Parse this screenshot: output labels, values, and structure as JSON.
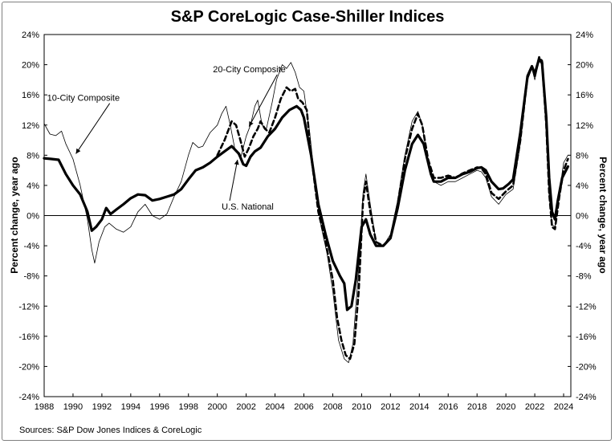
{
  "chart_data": {
    "type": "line",
    "title": "S&P CoreLogic Case-Shiller Indices",
    "source": "Sources:  S&P Dow Jones Indices & CoreLogic",
    "ylabel": "Percent change, year ago",
    "ylabel_right": "Percent change, year ago",
    "xlim": [
      1988,
      2024.5
    ],
    "ylim": [
      -24,
      24
    ],
    "x_ticks": [
      1988,
      1990,
      1992,
      1994,
      1996,
      1998,
      2000,
      2002,
      2004,
      2006,
      2008,
      2010,
      2012,
      2014,
      2016,
      2018,
      2020,
      2022,
      2024
    ],
    "x_tick_labels": [
      "1988",
      "1990",
      "1992",
      "1994",
      "1996",
      "1998",
      "2000",
      "2002",
      "2004",
      "2006",
      "2008",
      "2010",
      "2012",
      "2014",
      "2016",
      "2018",
      "2020",
      "2022",
      "2024"
    ],
    "y_ticks": [
      -24,
      -20,
      -16,
      -12,
      -8,
      -4,
      0,
      4,
      8,
      12,
      16,
      20,
      24
    ],
    "y_tick_labels": [
      "-24%",
      "-20%",
      "-16%",
      "-12%",
      "-8%",
      "-4%",
      "0%",
      "4%",
      "8%",
      "12%",
      "16%",
      "20%",
      "24%"
    ],
    "grid": false,
    "zero_line": true,
    "series": [
      {
        "name": "U.S. National",
        "style": "thick-solid",
        "color": "#000000",
        "points": [
          [
            1988.0,
            7.6
          ],
          [
            1988.5,
            7.5
          ],
          [
            1989.0,
            7.4
          ],
          [
            1989.5,
            5.5
          ],
          [
            1990.0,
            4.0
          ],
          [
            1990.5,
            2.8
          ],
          [
            1991.0,
            0.5
          ],
          [
            1991.3,
            -2.0
          ],
          [
            1991.6,
            -1.5
          ],
          [
            1992.0,
            -0.5
          ],
          [
            1992.3,
            1.0
          ],
          [
            1992.6,
            0.2
          ],
          [
            1993.0,
            0.8
          ],
          [
            1993.5,
            1.5
          ],
          [
            1994.0,
            2.3
          ],
          [
            1994.5,
            2.8
          ],
          [
            1995.0,
            2.7
          ],
          [
            1995.5,
            2.0
          ],
          [
            1996.0,
            2.2
          ],
          [
            1996.5,
            2.5
          ],
          [
            1997.0,
            2.8
          ],
          [
            1997.5,
            3.5
          ],
          [
            1998.0,
            4.8
          ],
          [
            1998.5,
            6.0
          ],
          [
            1999.0,
            6.4
          ],
          [
            1999.5,
            7.0
          ],
          [
            2000.0,
            7.8
          ],
          [
            2000.5,
            8.5
          ],
          [
            2001.0,
            9.2
          ],
          [
            2001.5,
            8.2
          ],
          [
            2001.8,
            6.8
          ],
          [
            2002.0,
            6.6
          ],
          [
            2002.3,
            7.8
          ],
          [
            2002.6,
            8.5
          ],
          [
            2003.0,
            9.0
          ],
          [
            2003.5,
            10.5
          ],
          [
            2004.0,
            11.5
          ],
          [
            2004.5,
            13.0
          ],
          [
            2005.0,
            14.0
          ],
          [
            2005.5,
            14.5
          ],
          [
            2005.8,
            14.0
          ],
          [
            2006.0,
            13.0
          ],
          [
            2006.5,
            8.0
          ],
          [
            2007.0,
            1.5
          ],
          [
            2007.5,
            -2.5
          ],
          [
            2008.0,
            -6.0
          ],
          [
            2008.5,
            -8.0
          ],
          [
            2008.8,
            -9.0
          ],
          [
            2009.0,
            -12.5
          ],
          [
            2009.3,
            -12.0
          ],
          [
            2009.6,
            -8.5
          ],
          [
            2010.0,
            -1.5
          ],
          [
            2010.3,
            -0.5
          ],
          [
            2010.6,
            -2.5
          ],
          [
            2011.0,
            -4.0
          ],
          [
            2011.5,
            -4.0
          ],
          [
            2012.0,
            -3.0
          ],
          [
            2012.5,
            1.0
          ],
          [
            2013.0,
            6.0
          ],
          [
            2013.5,
            9.5
          ],
          [
            2013.9,
            10.7
          ],
          [
            2014.3,
            9.5
          ],
          [
            2014.8,
            5.5
          ],
          [
            2015.0,
            4.5
          ],
          [
            2015.5,
            4.5
          ],
          [
            2016.0,
            5.0
          ],
          [
            2016.5,
            5.0
          ],
          [
            2017.0,
            5.5
          ],
          [
            2017.5,
            5.8
          ],
          [
            2018.0,
            6.3
          ],
          [
            2018.3,
            6.4
          ],
          [
            2018.6,
            6.0
          ],
          [
            2019.0,
            4.5
          ],
          [
            2019.5,
            3.5
          ],
          [
            2019.8,
            3.6
          ],
          [
            2020.2,
            4.2
          ],
          [
            2020.5,
            4.8
          ],
          [
            2021.0,
            11.0
          ],
          [
            2021.5,
            18.5
          ],
          [
            2021.8,
            19.8
          ],
          [
            2022.0,
            18.8
          ],
          [
            2022.3,
            20.8
          ],
          [
            2022.5,
            20.3
          ],
          [
            2022.8,
            13.0
          ],
          [
            2023.0,
            5.0
          ],
          [
            2023.2,
            0.5
          ],
          [
            2023.4,
            -0.5
          ],
          [
            2023.6,
            2.0
          ],
          [
            2023.9,
            5.0
          ],
          [
            2024.3,
            6.5
          ]
        ]
      },
      {
        "name": "20-City Composite",
        "style": "dashed",
        "color": "#000000",
        "points": [
          [
            2000.0,
            8.0
          ],
          [
            2000.5,
            10.0
          ],
          [
            2001.0,
            12.5
          ],
          [
            2001.3,
            12.0
          ],
          [
            2001.6,
            10.0
          ],
          [
            2001.9,
            7.8
          ],
          [
            2002.2,
            9.0
          ],
          [
            2002.5,
            10.5
          ],
          [
            2002.8,
            11.5
          ],
          [
            2003.0,
            12.5
          ],
          [
            2003.3,
            11.5
          ],
          [
            2003.6,
            11.0
          ],
          [
            2004.0,
            13.0
          ],
          [
            2004.4,
            15.5
          ],
          [
            2004.8,
            17.0
          ],
          [
            2005.1,
            16.5
          ],
          [
            2005.4,
            16.8
          ],
          [
            2005.6,
            15.5
          ],
          [
            2005.9,
            15.0
          ],
          [
            2006.2,
            14.0
          ],
          [
            2006.5,
            8.0
          ],
          [
            2007.0,
            0.5
          ],
          [
            2007.5,
            -3.5
          ],
          [
            2008.0,
            -8.5
          ],
          [
            2008.3,
            -13.5
          ],
          [
            2008.6,
            -16.5
          ],
          [
            2008.9,
            -18.5
          ],
          [
            2009.2,
            -19.0
          ],
          [
            2009.5,
            -17.0
          ],
          [
            2009.8,
            -10.0
          ],
          [
            2010.1,
            2.0
          ],
          [
            2010.3,
            4.5
          ],
          [
            2010.6,
            0.5
          ],
          [
            2011.0,
            -3.5
          ],
          [
            2011.5,
            -4.0
          ],
          [
            2012.0,
            -3.0
          ],
          [
            2012.5,
            1.5
          ],
          [
            2013.0,
            7.5
          ],
          [
            2013.5,
            11.5
          ],
          [
            2013.9,
            13.5
          ],
          [
            2014.2,
            12.0
          ],
          [
            2014.6,
            7.5
          ],
          [
            2015.0,
            5.0
          ],
          [
            2015.5,
            5.0
          ],
          [
            2016.0,
            5.3
          ],
          [
            2016.5,
            5.0
          ],
          [
            2017.0,
            5.6
          ],
          [
            2017.5,
            6.0
          ],
          [
            2018.0,
            6.4
          ],
          [
            2018.3,
            6.3
          ],
          [
            2018.6,
            5.5
          ],
          [
            2019.0,
            3.0
          ],
          [
            2019.5,
            2.2
          ],
          [
            2020.0,
            3.2
          ],
          [
            2020.5,
            4.0
          ],
          [
            2021.0,
            10.0
          ],
          [
            2021.5,
            18.5
          ],
          [
            2021.8,
            19.8
          ],
          [
            2022.0,
            18.5
          ],
          [
            2022.3,
            21.0
          ],
          [
            2022.5,
            20.5
          ],
          [
            2022.8,
            12.0
          ],
          [
            2023.0,
            3.0
          ],
          [
            2023.2,
            -1.5
          ],
          [
            2023.4,
            -1.8
          ],
          [
            2023.7,
            2.5
          ],
          [
            2024.0,
            6.0
          ],
          [
            2024.3,
            7.5
          ]
        ]
      },
      {
        "name": "10-City Composite",
        "style": "thin-solid",
        "color": "#000000",
        "points": [
          [
            1988.0,
            12.2
          ],
          [
            1988.4,
            10.8
          ],
          [
            1988.8,
            10.6
          ],
          [
            1989.2,
            11.2
          ],
          [
            1989.5,
            9.5
          ],
          [
            1990.0,
            7.5
          ],
          [
            1990.5,
            4.0
          ],
          [
            1991.0,
            -0.5
          ],
          [
            1991.3,
            -4.5
          ],
          [
            1991.5,
            -6.3
          ],
          [
            1991.8,
            -3.5
          ],
          [
            1992.2,
            -1.5
          ],
          [
            1992.5,
            -1.0
          ],
          [
            1993.0,
            -1.8
          ],
          [
            1993.5,
            -2.2
          ],
          [
            1994.0,
            -1.5
          ],
          [
            1994.5,
            0.5
          ],
          [
            1995.0,
            1.5
          ],
          [
            1995.5,
            0.0
          ],
          [
            1996.0,
            -0.5
          ],
          [
            1996.5,
            0.2
          ],
          [
            1997.0,
            2.5
          ],
          [
            1997.5,
            4.5
          ],
          [
            1998.0,
            8.0
          ],
          [
            1998.3,
            9.7
          ],
          [
            1998.7,
            9.0
          ],
          [
            1999.0,
            9.2
          ],
          [
            1999.5,
            11.0
          ],
          [
            2000.0,
            12.0
          ],
          [
            2000.3,
            13.5
          ],
          [
            2000.6,
            14.5
          ],
          [
            2000.9,
            12.0
          ],
          [
            2001.2,
            9.0
          ],
          [
            2001.6,
            7.5
          ],
          [
            2002.0,
            10.5
          ],
          [
            2002.3,
            12.0
          ],
          [
            2002.6,
            14.5
          ],
          [
            2002.8,
            15.3
          ],
          [
            2003.1,
            12.0
          ],
          [
            2003.4,
            11.5
          ],
          [
            2003.8,
            15.0
          ],
          [
            2004.1,
            18.0
          ],
          [
            2004.5,
            20.0
          ],
          [
            2004.8,
            19.5
          ],
          [
            2005.1,
            20.3
          ],
          [
            2005.4,
            19.0
          ],
          [
            2005.7,
            17.0
          ],
          [
            2006.0,
            16.5
          ],
          [
            2006.4,
            11.0
          ],
          [
            2006.8,
            4.0
          ],
          [
            2007.2,
            -1.5
          ],
          [
            2007.6,
            -5.0
          ],
          [
            2008.0,
            -10.0
          ],
          [
            2008.4,
            -16.5
          ],
          [
            2008.8,
            -19.0
          ],
          [
            2009.1,
            -19.5
          ],
          [
            2009.4,
            -17.0
          ],
          [
            2009.8,
            -7.0
          ],
          [
            2010.1,
            3.0
          ],
          [
            2010.3,
            5.5
          ],
          [
            2010.6,
            1.5
          ],
          [
            2011.0,
            -3.5
          ],
          [
            2011.5,
            -4.0
          ],
          [
            2012.0,
            -2.5
          ],
          [
            2012.5,
            2.0
          ],
          [
            2013.0,
            8.0
          ],
          [
            2013.5,
            12.5
          ],
          [
            2013.9,
            13.8
          ],
          [
            2014.2,
            12.0
          ],
          [
            2014.6,
            7.0
          ],
          [
            2015.0,
            4.5
          ],
          [
            2015.5,
            4.0
          ],
          [
            2016.0,
            4.5
          ],
          [
            2016.5,
            4.5
          ],
          [
            2017.0,
            5.0
          ],
          [
            2017.5,
            5.5
          ],
          [
            2018.0,
            6.0
          ],
          [
            2018.3,
            5.8
          ],
          [
            2018.6,
            5.0
          ],
          [
            2019.0,
            2.5
          ],
          [
            2019.5,
            1.5
          ],
          [
            2020.0,
            2.8
          ],
          [
            2020.5,
            3.5
          ],
          [
            2021.0,
            9.5
          ],
          [
            2021.5,
            18.0
          ],
          [
            2021.8,
            19.5
          ],
          [
            2022.0,
            18.0
          ],
          [
            2022.3,
            20.5
          ],
          [
            2022.5,
            20.0
          ],
          [
            2022.8,
            11.5
          ],
          [
            2023.0,
            2.5
          ],
          [
            2023.2,
            -1.2
          ],
          [
            2023.4,
            -1.5
          ],
          [
            2023.7,
            3.0
          ],
          [
            2024.0,
            7.0
          ],
          [
            2024.3,
            8.0
          ]
        ]
      }
    ],
    "annotations": [
      {
        "text": "10-City Composite",
        "x": 1988.2,
        "y": 15.2,
        "arrow_to": [
          1990.2,
          8.2
        ],
        "series": "10-City Composite"
      },
      {
        "text": "20-City Composite",
        "x": 1999.7,
        "y": 19.0,
        "arrow_to": [
          2002.2,
          11.8
        ],
        "series": "20-City Composite"
      },
      {
        "text": "U.S. National",
        "x": 2000.3,
        "y": 0.8,
        "arrow_to": [
          2001.4,
          7.4
        ],
        "series": "U.S. National"
      }
    ]
  }
}
